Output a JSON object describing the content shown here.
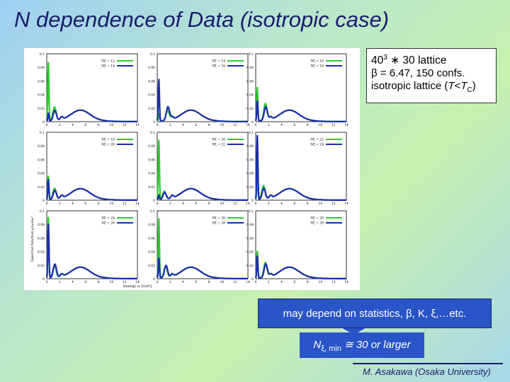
{
  "title": "N dependence of Data (isotropic case)",
  "info": {
    "line1_base": "40",
    "line1_exp": "3",
    "line1_rest": " ∗ 30 lattice",
    "line2": "β = 6.47, 150 confs.",
    "line3_prefix": "isotropic lattice (",
    "line3_T": "T",
    "line3_lt": "<",
    "line3_Tc": "T",
    "line3_c": "C",
    "line3_suffix": ")"
  },
  "note": "may depend on statistics, β, K, ξ,…etc.",
  "callout": {
    "prefix": "N",
    "subscript": "ξ, min",
    "rest": " ≅ 30 or larger"
  },
  "footer": "M. Asakawa (Osaka University)",
  "colors": {
    "series_a": "#2ecc2e",
    "series_b": "#1a2bb0"
  },
  "chart_data": {
    "type": "line",
    "grid": "3x3",
    "xlabel": "Energy ω [GeV]",
    "ylabel": "Spectral function ρ(ω)/ω²",
    "xlim": [
      0,
      14
    ],
    "xticks": [
      0,
      2,
      4,
      6,
      8,
      10,
      12,
      14
    ],
    "panels": [
      {
        "legend": [
          "Nξ = 12",
          "Nξ = 14"
        ],
        "ylim": [
          0,
          0.1
        ],
        "yticks": [
          "0.1",
          "0.08",
          "0.06",
          "0.04",
          "0.02",
          "0"
        ],
        "peak1": [
          0.087,
          0.012
        ],
        "hump": [
          0.02,
          0.015
        ],
        "humpx": 1.2
      },
      {
        "legend": [
          "Nξ = 14",
          "Nξ = 16"
        ],
        "ylim": [
          0,
          0.1
        ],
        "yticks": [
          "0.1",
          "0.08",
          "0.06",
          "0.04",
          "0.02",
          "0"
        ],
        "peak1": [
          0.012,
          0.062
        ],
        "hump": [
          0.015,
          0.02
        ],
        "humpx": 1.6
      },
      {
        "legend": [
          "Nξ = 16",
          "Nξ = 18"
        ],
        "ylim": [
          0,
          0.1
        ],
        "yticks": [
          "0.1",
          "0.08",
          "0.06",
          "0.04",
          "0.02",
          "0"
        ],
        "peak1": [
          0.05,
          0.03
        ],
        "hump": [
          0.025,
          0.02
        ],
        "humpx": 1.5
      },
      {
        "legend": [
          "Nξ = 18",
          "Nξ = 20"
        ],
        "ylim": [
          0,
          0.1
        ],
        "yticks": [
          "0.1",
          "0.08",
          "0.06",
          "0.04",
          "0.02",
          "0"
        ],
        "peak1": [
          0.035,
          0.03
        ],
        "hump": [
          0.016,
          0.013
        ],
        "humpx": 1.2
      },
      {
        "legend": [
          "Nξ = 20",
          "Nξ = 22"
        ],
        "ylim": [
          0,
          0.1
        ],
        "yticks": [
          "0.1",
          "0.08",
          "0.06",
          "0.04",
          "0.02",
          "0"
        ],
        "peak1": [
          0.088,
          0.006
        ],
        "hump": [
          0.012,
          0.01
        ],
        "humpx": 1.1
      },
      {
        "legend": [
          "Nξ = 22",
          "Nξ = 24"
        ],
        "ylim": [
          0,
          0.1
        ],
        "yticks": [
          "0.1",
          "0.08",
          "0.06",
          "0.04",
          "0.02",
          "0"
        ],
        "peak1": [
          0.04,
          0.095
        ],
        "hump": [
          0.02,
          0.016
        ],
        "humpx": 1.2
      },
      {
        "legend": [
          "Nξ = 24",
          "Nξ = 26"
        ],
        "ylim": [
          0,
          0.1
        ],
        "yticks": [
          "0.1",
          "0.08",
          "0.06",
          "0.04",
          "0.02",
          "0"
        ],
        "peak1": [
          0.09,
          0.08
        ],
        "hump": [
          0.018,
          0.02
        ],
        "humpx": 1.2
      },
      {
        "legend": [
          "Nξ = 26",
          "Nξ = 28"
        ],
        "ylim": [
          0,
          0.1
        ],
        "yticks": [
          "0.1",
          "0.08",
          "0.06",
          "0.04",
          "0.02",
          "0"
        ],
        "peak1": [
          0.088,
          0.03
        ],
        "hump": [
          0.017,
          0.018
        ],
        "humpx": 1.3
      },
      {
        "legend": [
          "Nξ = 28",
          "Nξ = 29"
        ],
        "ylim": [
          0,
          0.1
        ],
        "yticks": [
          "0.1",
          "0.08",
          "0.06",
          "0.04",
          "0.02",
          "0"
        ],
        "peak1": [
          0.04,
          0.033
        ],
        "hump": [
          0.022,
          0.02
        ],
        "humpx": 1.5
      }
    ]
  }
}
